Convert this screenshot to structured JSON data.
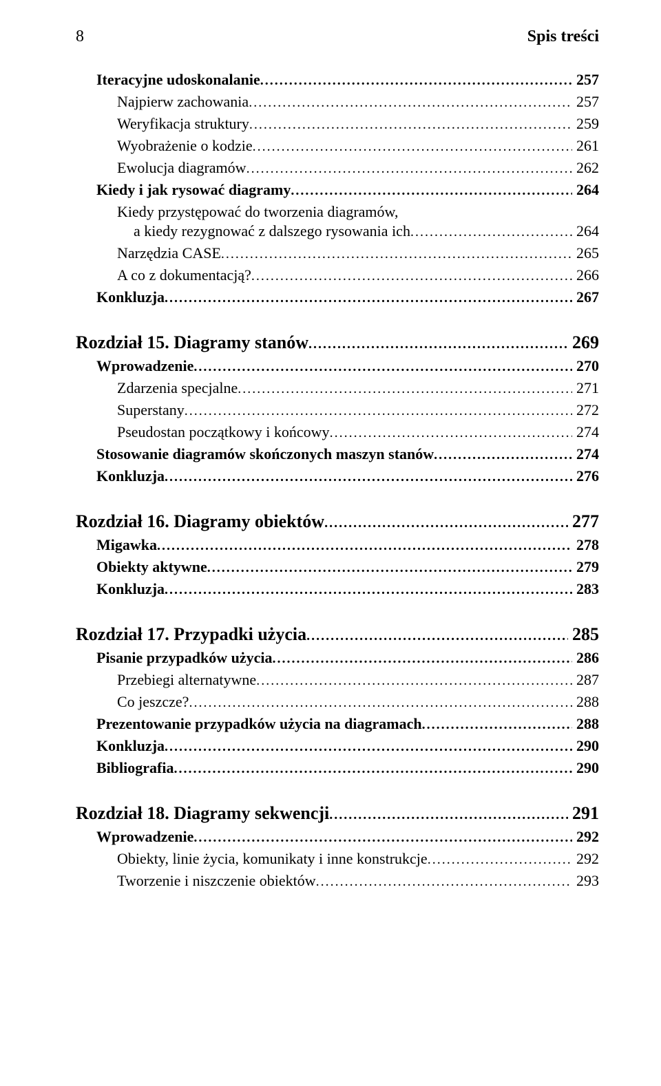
{
  "header": {
    "page_number": "8",
    "title": "Spis treści"
  },
  "toc": {
    "top_group": [
      {
        "level": "section",
        "label": "Iteracyjne udoskonalanie",
        "page": "257"
      },
      {
        "level": "sub",
        "label": "Najpierw zachowania",
        "page": "257"
      },
      {
        "level": "sub",
        "label": "Weryfikacja struktury",
        "page": "259"
      },
      {
        "level": "sub",
        "label": "Wyobrażenie o kodzie",
        "page": "261"
      },
      {
        "level": "sub",
        "label": "Ewolucja diagramów",
        "page": "262"
      },
      {
        "level": "section",
        "label": "Kiedy i jak rysować diagramy",
        "page": "264"
      },
      {
        "level": "sub",
        "label": "Kiedy przystępować do tworzenia diagramów,",
        "page": null
      },
      {
        "level": "sub",
        "label": "a kiedy rezygnować z dalszego rysowania ich",
        "page": "264",
        "continuation": true
      },
      {
        "level": "sub",
        "label": "Narzędzia CASE",
        "page": "265"
      },
      {
        "level": "sub",
        "label": "A co z dokumentacją?",
        "page": "266"
      },
      {
        "level": "section",
        "label": "Konkluzja",
        "page": "267"
      }
    ],
    "chapters": [
      {
        "title": "Rozdział 15. Diagramy stanów",
        "page": "269",
        "items": [
          {
            "level": "section",
            "label": "Wprowadzenie",
            "page": "270"
          },
          {
            "level": "sub",
            "label": "Zdarzenia specjalne",
            "page": "271"
          },
          {
            "level": "sub",
            "label": "Superstany",
            "page": "272"
          },
          {
            "level": "sub",
            "label": "Pseudostan początkowy i końcowy",
            "page": "274"
          },
          {
            "level": "section",
            "label": "Stosowanie diagramów skończonych maszyn stanów",
            "page": "274"
          },
          {
            "level": "section",
            "label": "Konkluzja",
            "page": "276"
          }
        ]
      },
      {
        "title": "Rozdział 16. Diagramy obiektów",
        "page": "277",
        "items": [
          {
            "level": "section",
            "label": "Migawka",
            "page": "278"
          },
          {
            "level": "section",
            "label": "Obiekty aktywne",
            "page": "279"
          },
          {
            "level": "section",
            "label": "Konkluzja",
            "page": "283"
          }
        ]
      },
      {
        "title": "Rozdział 17. Przypadki użycia",
        "page": "285",
        "items": [
          {
            "level": "section",
            "label": "Pisanie przypadków użycia",
            "page": "286"
          },
          {
            "level": "sub",
            "label": "Przebiegi alternatywne",
            "page": "287"
          },
          {
            "level": "sub",
            "label": "Co jeszcze?",
            "page": "288"
          },
          {
            "level": "section",
            "label": "Prezentowanie przypadków użycia na diagramach",
            "page": "288"
          },
          {
            "level": "section",
            "label": "Konkluzja",
            "page": "290"
          },
          {
            "level": "section",
            "label": "Bibliografia",
            "page": "290"
          }
        ]
      },
      {
        "title": "Rozdział 18. Diagramy sekwencji",
        "page": "291",
        "items": [
          {
            "level": "section",
            "label": "Wprowadzenie",
            "page": "292"
          },
          {
            "level": "sub",
            "label": "Obiekty, linie życia, komunikaty i inne konstrukcje",
            "page": "292"
          },
          {
            "level": "sub",
            "label": "Tworzenie i niszczenie obiektów",
            "page": "293"
          }
        ]
      }
    ]
  }
}
